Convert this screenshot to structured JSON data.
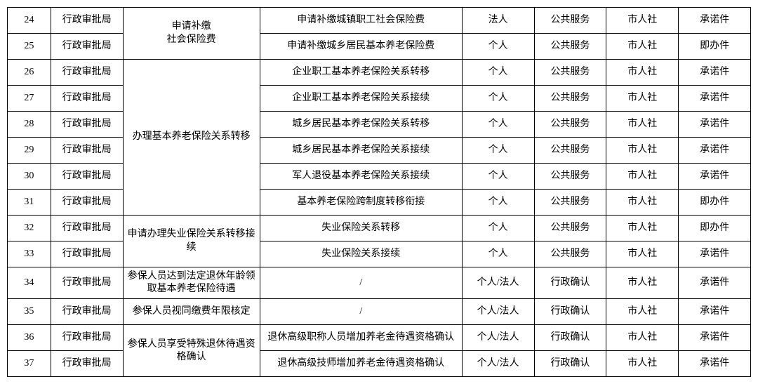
{
  "table": {
    "background_color": "#ffffff",
    "border_color": "#000000",
    "font_family": "SimSun",
    "font_size": 14,
    "columns": {
      "num_width": 60,
      "dept_width": 100,
      "cat_width": 190,
      "item_width": 280,
      "subj_width": 100,
      "type_width": 100,
      "org_width": 100,
      "deal_width": 100
    },
    "groups": [
      {
        "category": "申请补缴\n社会保险费",
        "rows": [
          {
            "num": "24",
            "dept": "行政审批局",
            "item": "申请补缴城镇职工社会保险费",
            "subj": "法人",
            "type": "公共服务",
            "org": "市人社",
            "deal": "承诺件"
          },
          {
            "num": "25",
            "dept": "行政审批局",
            "item": "申请补缴城乡居民基本养老保险费",
            "subj": "个人",
            "type": "公共服务",
            "org": "市人社",
            "deal": "即办件"
          }
        ]
      },
      {
        "category": "办理基本养老保险关系转移",
        "rows": [
          {
            "num": "26",
            "dept": "行政审批局",
            "item": "企业职工基本养老保险关系转移",
            "subj": "个人",
            "type": "公共服务",
            "org": "市人社",
            "deal": "承诺件"
          },
          {
            "num": "27",
            "dept": "行政审批局",
            "item": "企业职工基本养老保险关系接续",
            "subj": "个人",
            "type": "公共服务",
            "org": "市人社",
            "deal": "承诺件"
          },
          {
            "num": "28",
            "dept": "行政审批局",
            "item": "城乡居民基本养老保险关系转移",
            "subj": "个人",
            "type": "公共服务",
            "org": "市人社",
            "deal": "承诺件"
          },
          {
            "num": "29",
            "dept": "行政审批局",
            "item": "城乡居民基本养老保险关系接续",
            "subj": "个人",
            "type": "公共服务",
            "org": "市人社",
            "deal": "承诺件"
          },
          {
            "num": "30",
            "dept": "行政审批局",
            "item": "军人退役基本养老保险关系接续",
            "subj": "个人",
            "type": "公共服务",
            "org": "市人社",
            "deal": "承诺件"
          },
          {
            "num": "31",
            "dept": "行政审批局",
            "item": "基本养老保险跨制度转移衔接",
            "subj": "个人",
            "type": "公共服务",
            "org": "市人社",
            "deal": "即办件"
          }
        ]
      },
      {
        "category": "申请办理失业保险关系转移接续",
        "rows": [
          {
            "num": "32",
            "dept": "行政审批局",
            "item": "失业保险关系转移",
            "subj": "个人",
            "type": "公共服务",
            "org": "市人社",
            "deal": "即办件"
          },
          {
            "num": "33",
            "dept": "行政审批局",
            "item": "失业保险关系接续",
            "subj": "个人",
            "type": "公共服务",
            "org": "市人社",
            "deal": "承诺件"
          }
        ]
      },
      {
        "category": "参保人员达到法定退休年龄领取基本养老保险待遇",
        "rows": [
          {
            "num": "34",
            "dept": "行政审批局",
            "item": "/",
            "subj": "个人/法人",
            "type": "行政确认",
            "org": "市人社",
            "deal": "承诺件"
          }
        ]
      },
      {
        "category": "参保人员视同缴费年限核定",
        "rows": [
          {
            "num": "35",
            "dept": "行政审批局",
            "item": "/",
            "subj": "个人/法人",
            "type": "行政确认",
            "org": "市人社",
            "deal": "承诺件"
          }
        ]
      },
      {
        "category": "参保人员享受特殊退休待遇资格确认",
        "rows": [
          {
            "num": "36",
            "dept": "行政审批局",
            "item": "退休高级职称人员增加养老金待遇资格确认",
            "subj": "个人/法人",
            "type": "行政确认",
            "org": "市人社",
            "deal": "承诺件"
          },
          {
            "num": "37",
            "dept": "行政审批局",
            "item": "退休高级技师增加养老金待遇资格确认",
            "subj": "个人/法人",
            "type": "行政确认",
            "org": "市人社",
            "deal": "承诺件"
          }
        ]
      }
    ]
  }
}
